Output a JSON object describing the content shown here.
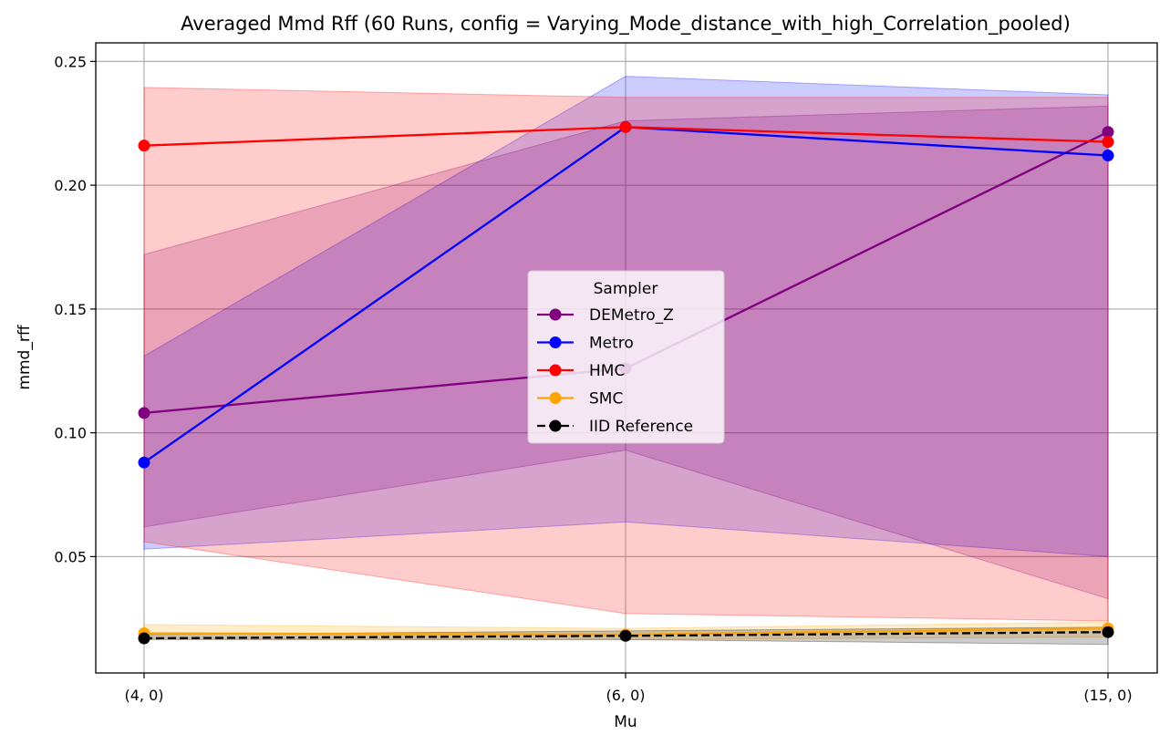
{
  "chart_data": {
    "type": "line",
    "title": "Averaged Mmd Rff (60 Runs, config = Varying_Mode_distance_with_high_Correlation_pooled)",
    "xlabel": "Mu",
    "ylabel": "mmd_rff",
    "categories": [
      "(4, 0)",
      "(6, 0)",
      "(15, 0)"
    ],
    "ylim": [
      0.003,
      0.2575
    ],
    "yticks": [
      0.05,
      0.1,
      0.15,
      0.2,
      0.25
    ],
    "ytick_labels": [
      "0.05",
      "0.10",
      "0.15",
      "0.20",
      "0.25"
    ],
    "grid": true,
    "legend": {
      "title": "Sampler",
      "placement": "center"
    },
    "series": [
      {
        "name": "DEMetro_Z",
        "color": "#800080",
        "dashed": false,
        "values": [
          0.108,
          0.126,
          0.2215
        ],
        "lower": [
          0.062,
          0.093,
          0.033
        ],
        "upper": [
          0.172,
          0.226,
          0.232
        ]
      },
      {
        "name": "Metro",
        "color": "#0000ff",
        "dashed": false,
        "values": [
          0.088,
          0.2235,
          0.212
        ],
        "lower": [
          0.053,
          0.064,
          0.05
        ],
        "upper": [
          0.131,
          0.244,
          0.2365
        ]
      },
      {
        "name": "HMC",
        "color": "#ff0000",
        "dashed": false,
        "values": [
          0.216,
          0.2235,
          0.2175
        ],
        "lower": [
          0.056,
          0.027,
          0.024
        ],
        "upper": [
          0.2395,
          0.2355,
          0.2355
        ]
      },
      {
        "name": "SMC",
        "color": "#ffa500",
        "dashed": false,
        "values": [
          0.019,
          0.0185,
          0.021
        ],
        "lower": [
          0.017,
          0.0165,
          0.0175
        ],
        "upper": [
          0.0225,
          0.021,
          0.0235
        ]
      },
      {
        "name": "IID Reference",
        "color": "#000000",
        "dashed": true,
        "values": [
          0.017,
          0.018,
          0.0195
        ],
        "lower": [
          0.0165,
          0.0165,
          0.0145
        ],
        "upper": [
          0.0185,
          0.02,
          0.0215
        ]
      }
    ]
  }
}
